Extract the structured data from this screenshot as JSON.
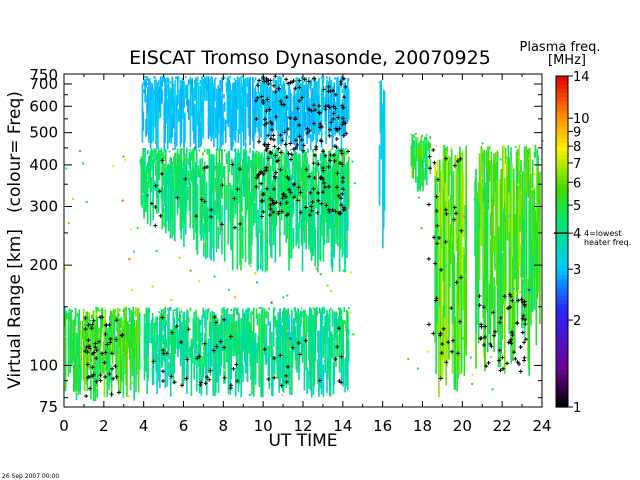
{
  "chart_data": {
    "type": "heatmap",
    "title": "EISCAT Tromso Dynasonde,  20070925",
    "xlabel": "UT TIME",
    "ylabel_main": "Virtual Range [km]",
    "ylabel_sub": "(colour= Freq)",
    "xlim": [
      0,
      24
    ],
    "xticks": [
      "0",
      "2",
      "4",
      "6",
      "8",
      "10",
      "12",
      "14",
      "16",
      "18",
      "20",
      "22",
      "24"
    ],
    "ylim": [
      75,
      750
    ],
    "yscale": "log",
    "yticks": [
      "75",
      "100",
      "200",
      "300",
      "400",
      "500",
      "600",
      "700"
    ],
    "ytick_values": [
      75,
      100,
      200,
      300,
      400,
      500,
      600,
      700
    ],
    "ytick_top_label": "750",
    "colorbar": {
      "title_line1": "Plasma freq.",
      "title_line2": "[MHz]",
      "range": [
        1,
        14
      ],
      "scale": "log",
      "ticks": [
        "1",
        "2",
        "3",
        "4",
        "5",
        "6",
        "7",
        "8",
        "9",
        "10",
        "14"
      ],
      "tick_values": [
        1,
        2,
        3,
        4,
        5,
        6,
        7,
        8,
        9,
        10,
        14
      ],
      "marker_value": 4,
      "marker_label_line1": "4=lowest",
      "marker_label_line2": "heater freq."
    },
    "regions": [
      {
        "t": [
          0.0,
          3.8
        ],
        "h": [
          78,
          150
        ],
        "f": [
          3.0,
          6.5
        ],
        "desc": "E/low F echoes"
      },
      {
        "t": [
          3.9,
          14.3
        ],
        "h": [
          440,
          740
        ],
        "f": [
          2.6,
          3.3
        ],
        "desc": "cyan vertical streaks"
      },
      {
        "t": [
          3.8,
          14.3
        ],
        "h": [
          190,
          450
        ],
        "f": [
          3.0,
          5.2
        ],
        "desc": "F-region main trace"
      },
      {
        "t": [
          4.0,
          14.3
        ],
        "h": [
          80,
          150
        ],
        "f": [
          2.6,
          5.0
        ],
        "desc": "low echoes"
      },
      {
        "t": [
          15.8,
          16.1
        ],
        "h": [
          220,
          720
        ],
        "f": [
          3.0,
          3.3
        ],
        "desc": "isolated column"
      },
      {
        "t": [
          17.4,
          18.4
        ],
        "h": [
          330,
          500
        ],
        "f": [
          3.0,
          6.5
        ],
        "desc": "patch near 18 UT"
      },
      {
        "t": [
          18.6,
          20.2
        ],
        "h": [
          80,
          460
        ],
        "f": [
          3.0,
          7.5
        ],
        "desc": "columns 19-20 UT"
      },
      {
        "t": [
          20.6,
          23.9
        ],
        "h": [
          90,
          460
        ],
        "f": [
          3.0,
          7.0
        ],
        "desc": "late echoes"
      }
    ],
    "timestamp": "26 Sep 2007 00:00"
  }
}
